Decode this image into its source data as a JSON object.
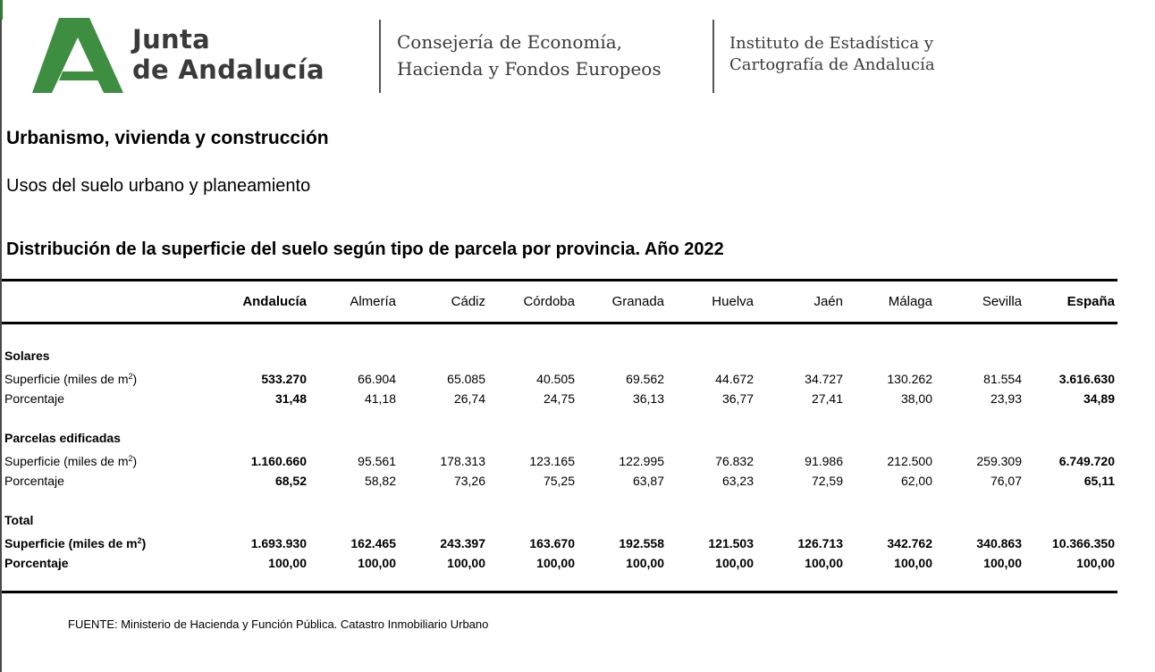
{
  "header": {
    "brand_line1": "Junta",
    "brand_line2": "de Andalucía",
    "consejeria_line1": "Consejería de Economía,",
    "consejeria_line2": "Hacienda y Fondos Europeos",
    "instituto_line1": "Instituto de Estadística y",
    "instituto_line2": "Cartografía de Andalucía",
    "brand_color": "#3e8e41"
  },
  "section_title": "Urbanismo, vivienda y construcción",
  "subsection_title": "Usos del suelo urbano y planeamiento",
  "table_title": "Distribución de la superficie del suelo según tipo de parcela por provincia. Año 2022",
  "table": {
    "columns": [
      "Andalucía",
      "Almería",
      "Cádiz",
      "Córdoba",
      "Granada",
      "Huelva",
      "Jaén",
      "Málaga",
      "Sevilla",
      "España"
    ],
    "groups": [
      {
        "title": "Solares",
        "superficie_label": "Superficie (miles de m",
        "superficie_sup": "2",
        "superficie_close": ")",
        "superficie": [
          "533.270",
          "66.904",
          "65.085",
          "40.505",
          "69.562",
          "44.672",
          "34.727",
          "130.262",
          "81.554",
          "3.616.630"
        ],
        "porcentaje_label": "Porcentaje",
        "porcentaje": [
          "31,48",
          "41,18",
          "26,74",
          "24,75",
          "36,13",
          "36,77",
          "27,41",
          "38,00",
          "23,93",
          "34,89"
        ]
      },
      {
        "title": "Parcelas edificadas",
        "superficie_label": "Superficie (miles de m",
        "superficie_sup": "2",
        "superficie_close": ")",
        "superficie": [
          "1.160.660",
          "95.561",
          "178.313",
          "123.165",
          "122.995",
          "76.832",
          "91.986",
          "212.500",
          "259.309",
          "6.749.720"
        ],
        "porcentaje_label": "Porcentaje",
        "porcentaje": [
          "68,52",
          "58,82",
          "73,26",
          "75,25",
          "63,87",
          "63,23",
          "72,59",
          "62,00",
          "76,07",
          "65,11"
        ]
      },
      {
        "title": "Total",
        "superficie_label": "Superficie (miles de m",
        "superficie_sup": "2",
        "superficie_close": ")",
        "superficie": [
          "1.693.930",
          "162.465",
          "243.397",
          "163.670",
          "192.558",
          "121.503",
          "126.713",
          "342.762",
          "340.863",
          "10.366.350"
        ],
        "porcentaje_label": "Porcentaje",
        "porcentaje": [
          "100,00",
          "100,00",
          "100,00",
          "100,00",
          "100,00",
          "100,00",
          "100,00",
          "100,00",
          "100,00",
          "100,00"
        ]
      }
    ]
  },
  "source": "FUENTE: Ministerio de Hacienda y Función Pública. Catastro Inmobiliario Urbano"
}
